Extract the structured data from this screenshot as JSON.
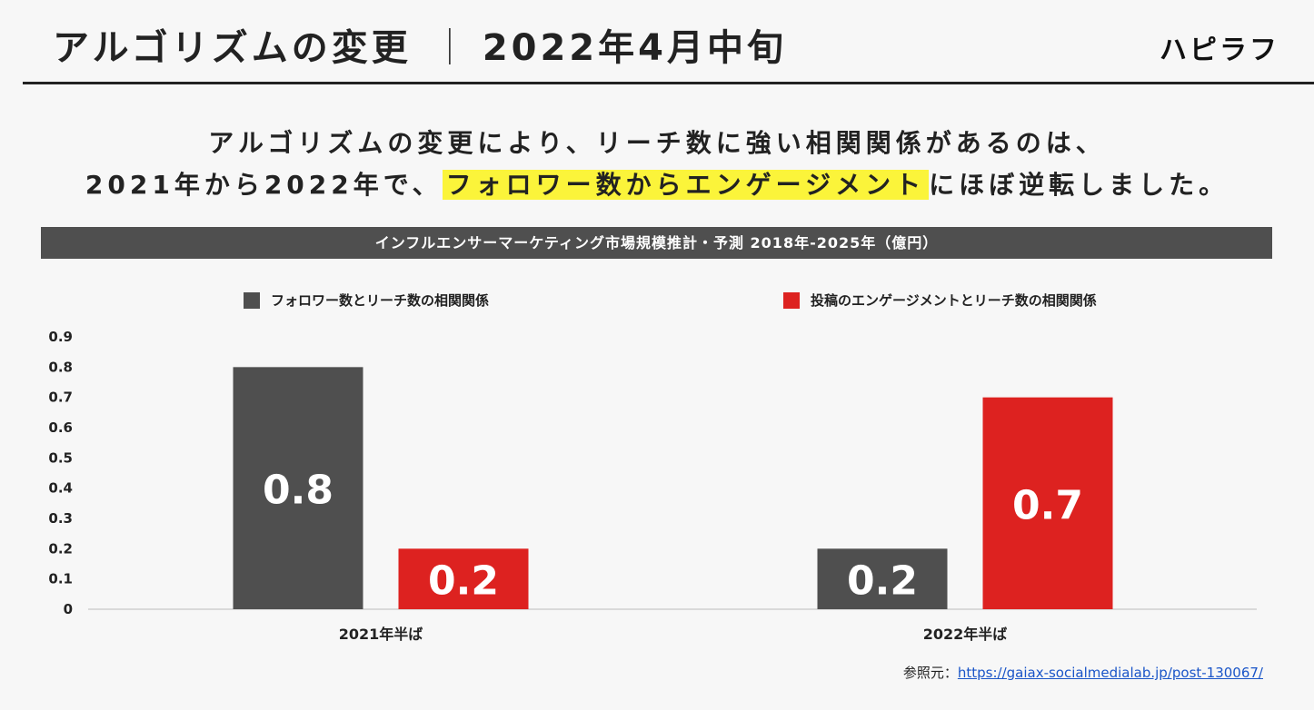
{
  "header": {
    "title": "アルゴリズムの変更",
    "separator": "｜",
    "date": "2022年4月中旬",
    "brand": "ハピラフ"
  },
  "headline": {
    "line1": "アルゴリズムの変更により、リーチ数に強い相関関係があるのは、",
    "line2_before": "2021年から2022年で、",
    "line2_highlight": "フォロワー数からエンゲージメント",
    "line2_after": "にほぼ逆転しました。",
    "highlight_color": "#fbf43a"
  },
  "chart_data": {
    "type": "bar",
    "title": "インフルエンサーマーケティング市場規模推計・予測 2018年-2025年（億円）",
    "categories": [
      "2021年半ば",
      "2022年半ば"
    ],
    "series": [
      {
        "name": "フォロワー数とリーチ数の相関関係",
        "values": [
          0.8,
          0.2
        ],
        "color": "#4f4f4f"
      },
      {
        "name": "投稿のエンゲージメントとリーチ数の相関関係",
        "values": [
          0.2,
          0.7
        ],
        "color": "#dd2220"
      }
    ],
    "y_ticks": [
      "0",
      "0.1",
      "0.2",
      "0.3",
      "0.4",
      "0.5",
      "0.6",
      "0.7",
      "0.8",
      "0.9"
    ],
    "ylim": [
      0,
      0.9
    ],
    "grid": false,
    "legend_position": "top",
    "data_labels": true
  },
  "source": {
    "label": "参照元：",
    "link_text": "https://gaiax-socialmedialab.jp/post-130067/"
  }
}
